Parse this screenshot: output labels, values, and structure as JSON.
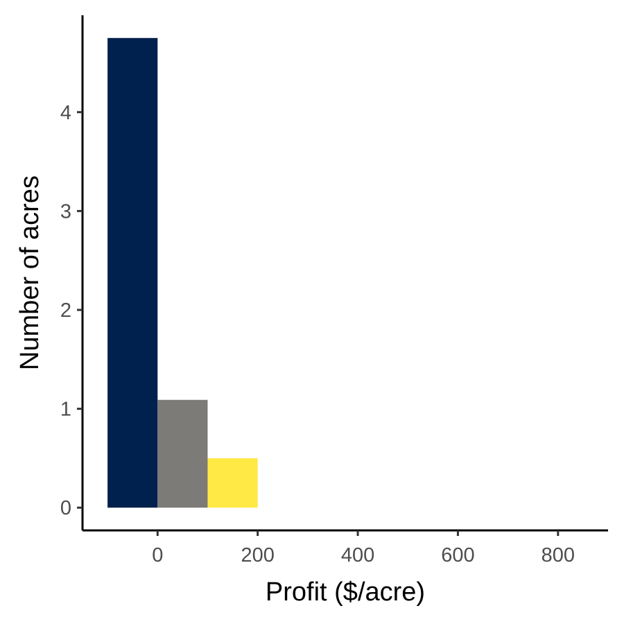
{
  "chart_data": {
    "type": "bar",
    "xlabel": "Profit ($/acre)",
    "ylabel": "Number of acres",
    "xlim": [
      -150,
      900
    ],
    "ylim": [
      -0.23,
      4.98
    ],
    "xticks": [
      0,
      200,
      400,
      600,
      800
    ],
    "xtick_labels": [
      "0",
      "200",
      "400",
      "600",
      "800"
    ],
    "yticks": [
      0,
      1,
      2,
      3,
      4
    ],
    "ytick_labels": [
      "0",
      "1",
      "2",
      "3",
      "4"
    ],
    "grid": false,
    "legend": "none",
    "bars": [
      {
        "x_start": -100,
        "x_end": 0,
        "value": 4.75,
        "color": "#00204d"
      },
      {
        "x_start": 0,
        "x_end": 100,
        "value": 1.09,
        "color": "#7c7b78"
      },
      {
        "x_start": 100,
        "x_end": 200,
        "value": 0.5,
        "color": "#ffe945"
      }
    ]
  }
}
